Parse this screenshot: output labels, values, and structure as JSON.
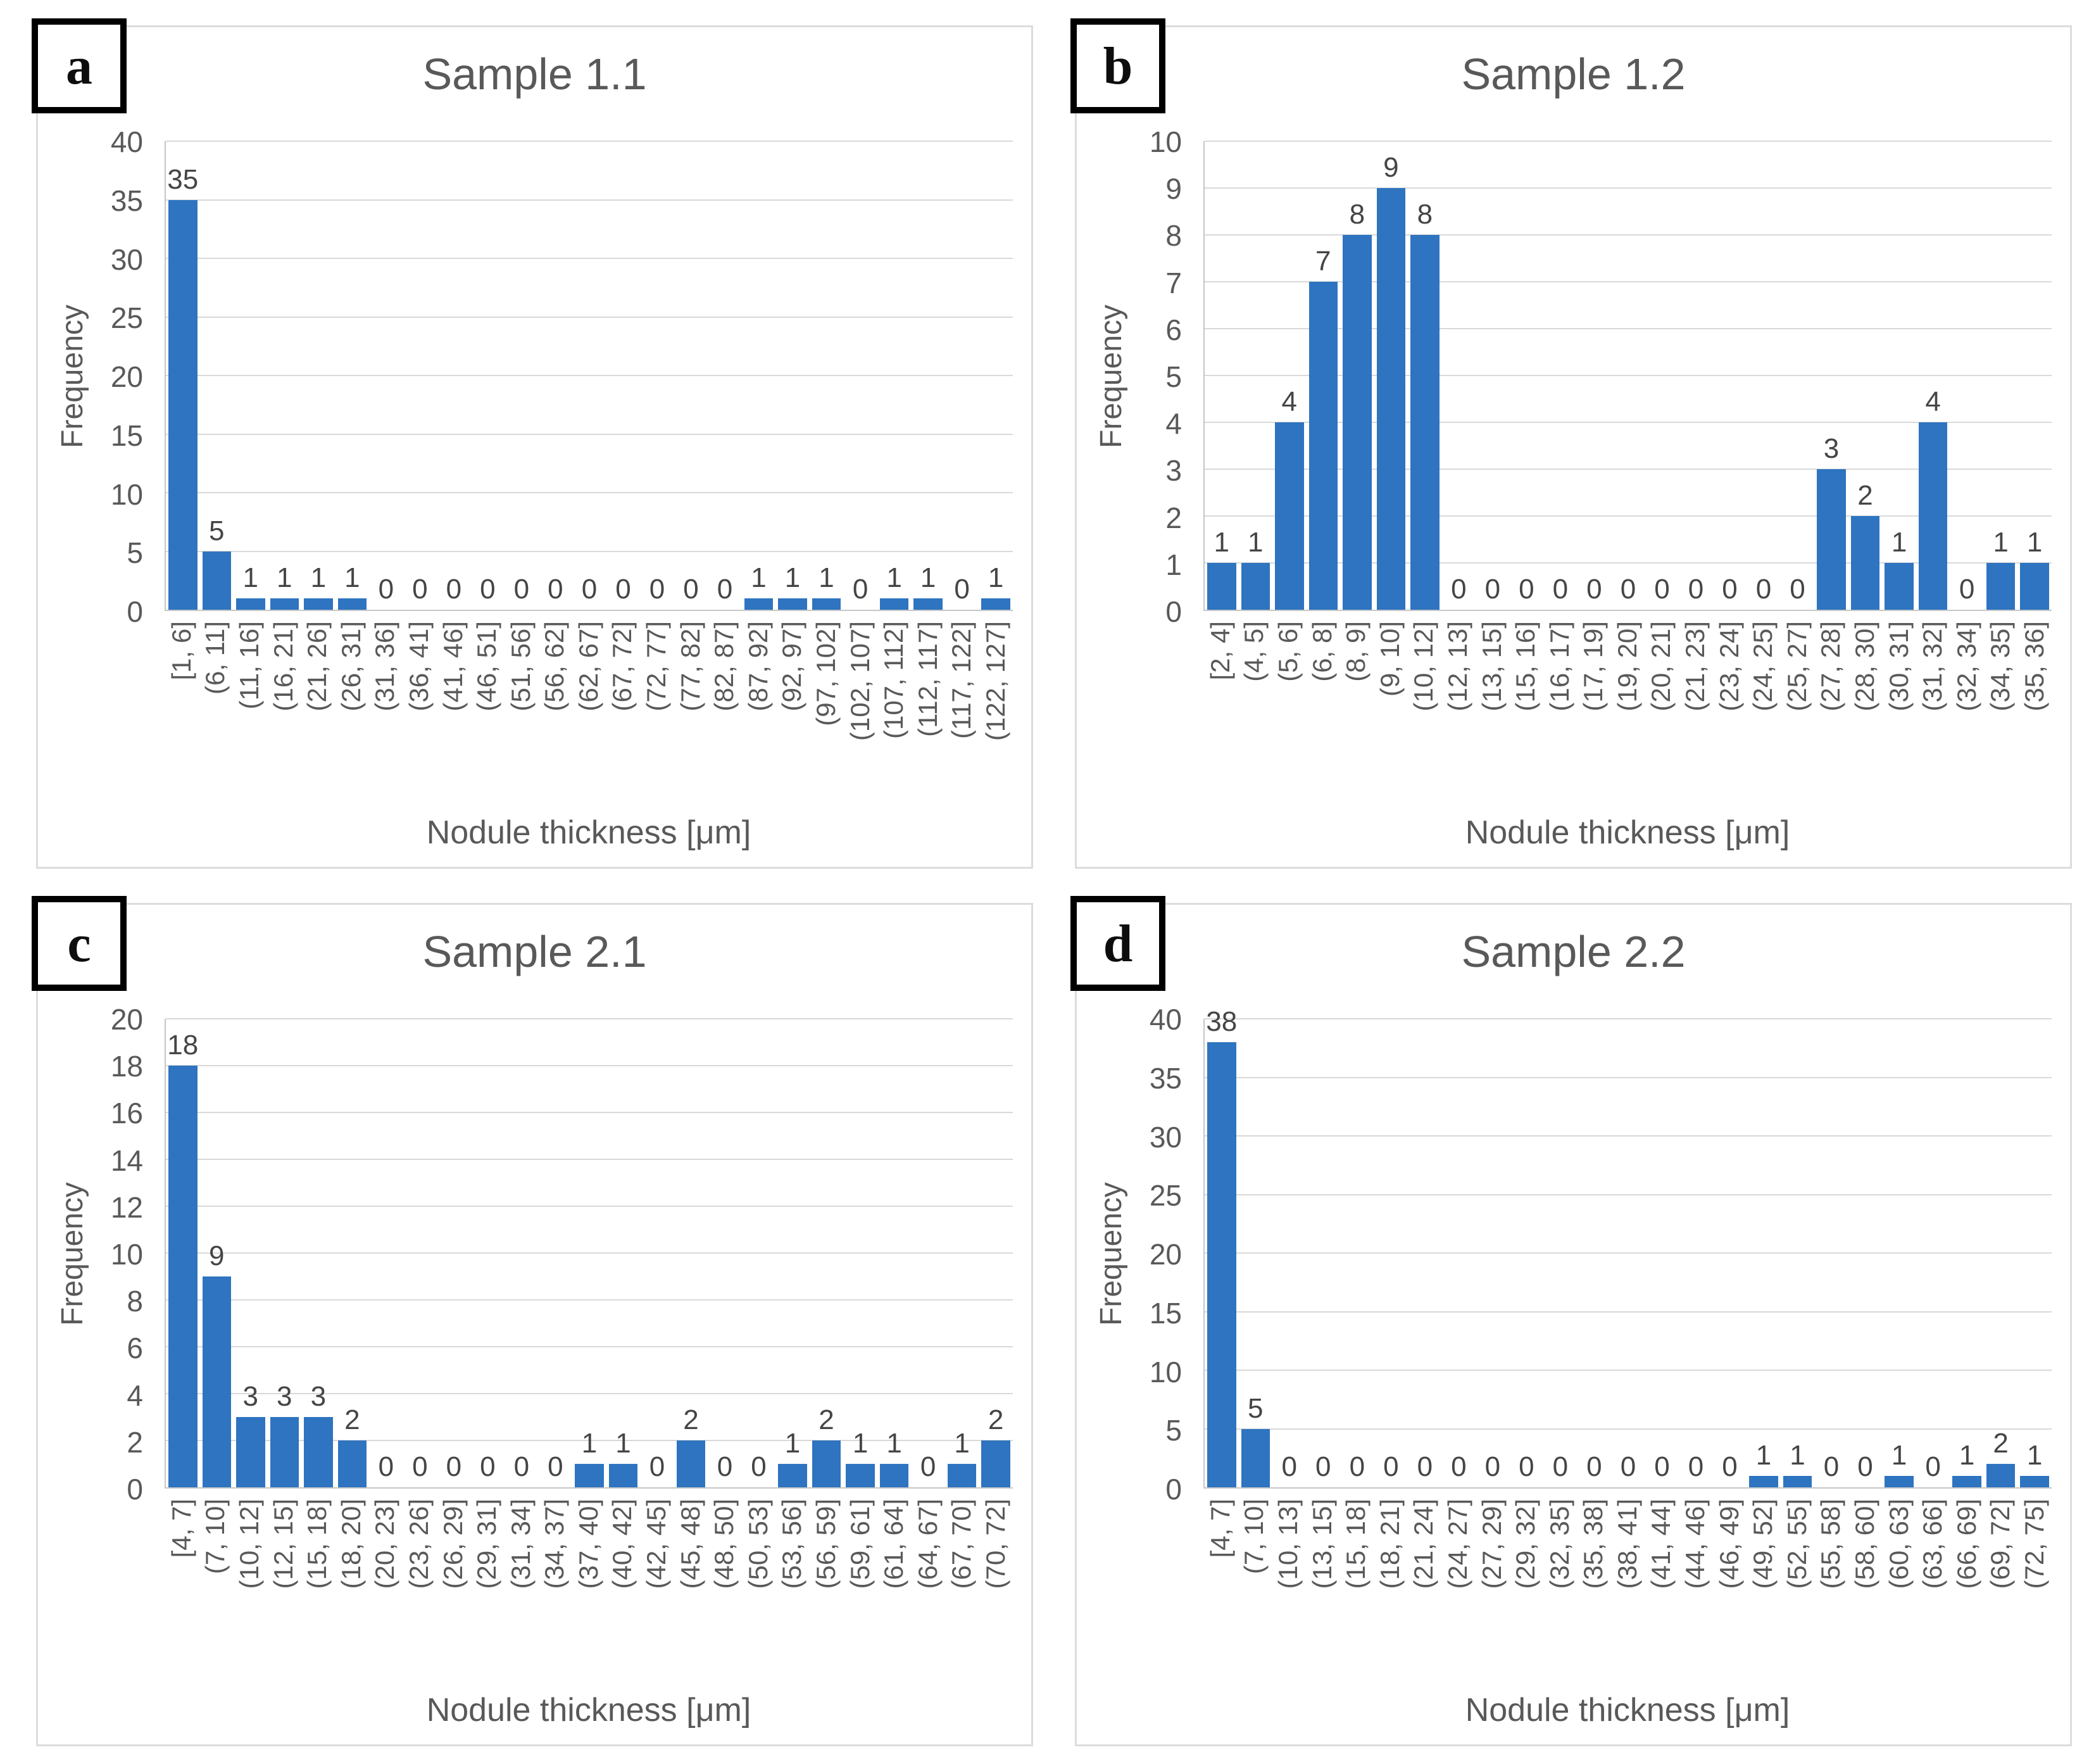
{
  "shared": {
    "ylabel": "Frequency",
    "xlabel": "Nodule thickness [μm]"
  },
  "colors": {
    "bar": "#2e74c0",
    "gridline": "#d9d9d9",
    "axis_line": "#c6c6c6",
    "title_text": "#595959",
    "tick_text": "#595959",
    "data_label_text": "#454545",
    "panel_border": "#dcdcdc",
    "letter_box_border": "#000000"
  },
  "chart_data": [
    {
      "type": "bar",
      "panel_letter": "a",
      "title": "Sample 1.1",
      "xlabel": "Nodule thickness [μm]",
      "ylabel": "Frequency",
      "ylim": [
        0,
        40
      ],
      "ytick_step": 5,
      "grid": true,
      "legend": false,
      "data_labels_shown": true,
      "categories": [
        "[1, 6]",
        "(6, 11]",
        "(11, 16]",
        "(16, 21]",
        "(21, 26]",
        "(26, 31]",
        "(31, 36]",
        "(36, 41]",
        "(41, 46]",
        "(46, 51]",
        "(51, 56]",
        "(56, 62]",
        "(62, 67]",
        "(67, 72]",
        "(72, 77]",
        "(77, 82]",
        "(82, 87]",
        "(87, 92]",
        "(92, 97]",
        "(97, 102]",
        "(102, 107]",
        "(107, 112]",
        "(112, 117]",
        "(117, 122]",
        "(122, 127]"
      ],
      "values": [
        35,
        5,
        1,
        1,
        1,
        1,
        0,
        0,
        0,
        0,
        0,
        0,
        0,
        0,
        0,
        0,
        0,
        1,
        1,
        1,
        0,
        1,
        1,
        0,
        1
      ]
    },
    {
      "type": "bar",
      "panel_letter": "b",
      "title": "Sample 1.2",
      "xlabel": "Nodule thickness [μm]",
      "ylabel": "Frequency",
      "ylim": [
        0,
        10
      ],
      "ytick_step": 1,
      "grid": true,
      "legend": false,
      "data_labels_shown": true,
      "categories": [
        "[2, 4]",
        "(4, 5]",
        "(5, 6]",
        "(6, 8]",
        "(8, 9]",
        "(9, 10]",
        "(10, 12]",
        "(12, 13]",
        "(13, 15]",
        "(15, 16]",
        "(16, 17]",
        "(17, 19]",
        "(19, 20]",
        "(20, 21]",
        "(21, 23]",
        "(23, 24]",
        "(24, 25]",
        "(25, 27]",
        "(27, 28]",
        "(28, 30]",
        "(30, 31]",
        "(31, 32]",
        "(32, 34]",
        "(34, 35]",
        "(35, 36]"
      ],
      "values": [
        1,
        1,
        4,
        7,
        8,
        9,
        8,
        0,
        0,
        0,
        0,
        0,
        0,
        0,
        0,
        0,
        0,
        0,
        3,
        2,
        1,
        4,
        0,
        1,
        1
      ]
    },
    {
      "type": "bar",
      "panel_letter": "c",
      "title": "Sample 2.1",
      "xlabel": "Nodule thickness [μm]",
      "ylabel": "Frequency",
      "ylim": [
        0,
        20
      ],
      "ytick_step": 2,
      "grid": true,
      "legend": false,
      "data_labels_shown": true,
      "categories": [
        "[4, 7]",
        "(7, 10]",
        "(10, 12]",
        "(12, 15]",
        "(15, 18]",
        "(18, 20]",
        "(20, 23]",
        "(23, 26]",
        "(26, 29]",
        "(29, 31]",
        "(31, 34]",
        "(34, 37]",
        "(37, 40]",
        "(40, 42]",
        "(42, 45]",
        "(45, 48]",
        "(48, 50]",
        "(50, 53]",
        "(53, 56]",
        "(56, 59]",
        "(59, 61]",
        "(61, 64]",
        "(64, 67]",
        "(67, 70]",
        "(70, 72]"
      ],
      "values": [
        18,
        9,
        3,
        3,
        3,
        2,
        0,
        0,
        0,
        0,
        0,
        0,
        1,
        1,
        0,
        2,
        0,
        0,
        1,
        2,
        1,
        1,
        0,
        1,
        2
      ]
    },
    {
      "type": "bar",
      "panel_letter": "d",
      "title": "Sample 2.2",
      "xlabel": "Nodule thickness [μm]",
      "ylabel": "Frequency",
      "ylim": [
        0,
        40
      ],
      "ytick_step": 5,
      "grid": true,
      "legend": false,
      "data_labels_shown": true,
      "categories": [
        "[4, 7]",
        "(7, 10]",
        "(10, 13]",
        "(13, 15]",
        "(15, 18]",
        "(18, 21]",
        "(21, 24]",
        "(24, 27]",
        "(27, 29]",
        "(29, 32]",
        "(32, 35]",
        "(35, 38]",
        "(38, 41]",
        "(41, 44]",
        "(44, 46]",
        "(46, 49]",
        "(49, 52]",
        "(52, 55]",
        "(55, 58]",
        "(58, 60]",
        "(60, 63]",
        "(63, 66]",
        "(66, 69]",
        "(69, 72]",
        "(72, 75]"
      ],
      "values": [
        38,
        5,
        0,
        0,
        0,
        0,
        0,
        0,
        0,
        0,
        0,
        0,
        0,
        0,
        0,
        0,
        1,
        1,
        0,
        0,
        1,
        0,
        1,
        2,
        1
      ]
    }
  ]
}
